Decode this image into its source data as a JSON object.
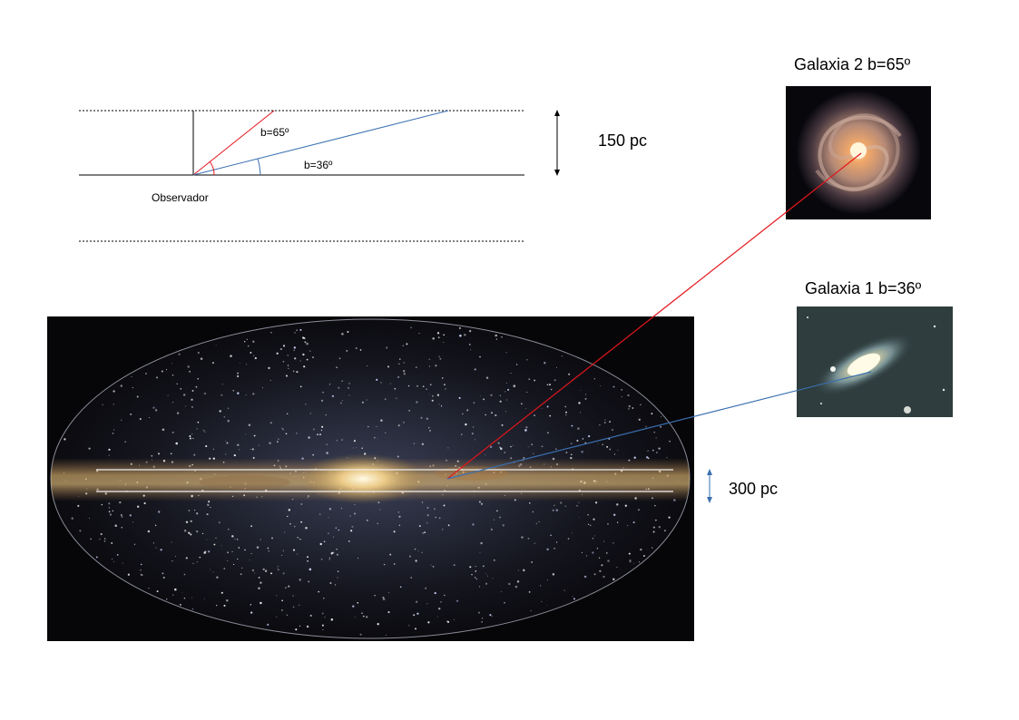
{
  "geometry_diagram": {
    "angle_label_1": "b=65º",
    "angle_label_2": "b=36º",
    "observer_label": "Observador",
    "thickness_label": "150 pc"
  },
  "galaxy_2": {
    "title": "Galaxia 2 b=65º"
  },
  "galaxy_1": {
    "title": "Galaxia 1  b=36º"
  },
  "milky_way": {
    "disk_thickness_label": "300 pc"
  },
  "colors": {
    "red_line": "#e3161b",
    "blue_line": "#3a6fb0",
    "black": "#000000"
  }
}
